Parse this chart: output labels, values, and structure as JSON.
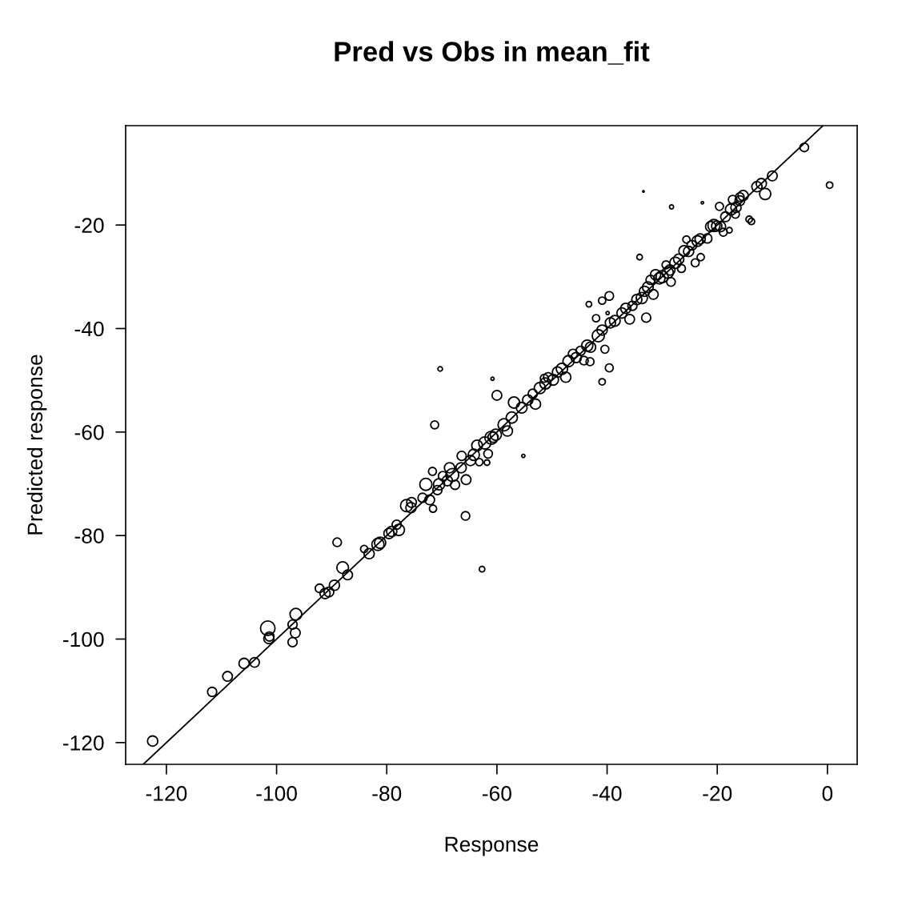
{
  "chart_data": {
    "type": "bubble",
    "title": "Pred vs Obs in mean_fit",
    "xlabel": "Response",
    "ylabel": "Predicted response",
    "xlim": [
      -127.4,
      5.4
    ],
    "ylim": [
      -124.2,
      -0.8
    ],
    "xticks": [
      -120,
      -100,
      -80,
      -60,
      -40,
      -20,
      0
    ],
    "yticks": [
      -120,
      -100,
      -80,
      -60,
      -40,
      -20
    ],
    "grid": false,
    "legend": false,
    "marker": "circle",
    "series": [
      {
        "color": "#000000",
        "x": [
          -122.5,
          -111.7,
          -108.9,
          -105.9,
          -104,
          -101.6,
          -101.4,
          -101.3,
          -97.1,
          -97.1,
          -96.6,
          -96.5,
          -92.2,
          -91.2,
          -90.5,
          -89.5,
          -89,
          -88,
          -87.1,
          -84.1,
          -83.2,
          -81.6,
          -81.2,
          -79.6,
          -79.1,
          -77.8,
          -78.2,
          -76.4,
          -75.6,
          -75.5,
          -73.5,
          -72.9,
          -72.2,
          -71.6,
          -71.7,
          -71.3,
          -70.5,
          -70.8,
          -70.3,
          -69.8,
          -69.0,
          -68.6,
          -68.1,
          -67.6,
          -66.5,
          -66.4,
          -65.7,
          -65.6,
          -64.8,
          -64.2,
          -63.6,
          -63.2,
          -62.7,
          -62.2,
          -61.8,
          -61.6,
          -61.0,
          -60.7,
          -60.2,
          -60.8,
          -60.0,
          -58.7,
          -58.1,
          -57.3,
          -56.9,
          -55.5,
          -55.2,
          -54.4,
          -53.5,
          -53.0,
          -52.2,
          -51.4,
          -51.2,
          -50.7,
          -49.8,
          -49.0,
          -48.2,
          -47.5,
          -47.0,
          -46.2,
          -45.6,
          -44.8,
          -44.2,
          -43.6,
          -43.0,
          -43.1,
          -43.3,
          -42.0,
          -41.6,
          -40.9,
          -40.4,
          -39.6,
          -40.9,
          -39.4,
          -38.6,
          -39.9,
          -40.9,
          -39.6,
          -37.3,
          -36.6,
          -35.9,
          -35.4,
          -34.6,
          -34.1,
          -33.7,
          -33.2,
          -32.9,
          -32.6,
          -32.1,
          -31.6,
          -31.2,
          -30.5,
          -30.0,
          -29.3,
          -29.0,
          -28.6,
          -28.3,
          -28.4,
          -27.6,
          -27.0,
          -26.5,
          -26.0,
          -25.6,
          -25.2,
          -24.6,
          -24.0,
          -23.6,
          -23.1,
          -23.0,
          -22.7,
          -21.8,
          -21.2,
          -20.6,
          -20.1,
          -19.4,
          -19.6,
          -18.9,
          -18.5,
          -17.8,
          -17.5,
          -17.2,
          -16.6,
          -15.9,
          -15.3,
          -14.2,
          -13.8,
          -12.8,
          -12.0,
          -11.3,
          -10.0,
          -4.2,
          0.4,
          -33.4,
          -16.7,
          -15.9
        ],
        "values": [
          -119.7,
          -110.2,
          -107.2,
          -104.7,
          -104.5,
          -97.9,
          -99.9,
          -99.5,
          -100.6,
          -97.2,
          -98.8,
          -95.2,
          -90.2,
          -91.2,
          -90.9,
          -89.6,
          -81.3,
          -86.2,
          -87.6,
          -82.6,
          -83.5,
          -81.7,
          -81.4,
          -79.6,
          -79.2,
          -78.9,
          -77.9,
          -74.2,
          -74.6,
          -73.6,
          -72.7,
          -70.1,
          -73.1,
          -74.8,
          -67.6,
          -58.6,
          -70.1,
          -71.2,
          -47.8,
          -68.5,
          -69.4,
          -66.9,
          -68.3,
          -70.2,
          -66.9,
          -64.6,
          -76.2,
          -69.2,
          -65.5,
          -64.4,
          -62.6,
          -65.8,
          -86.5,
          -62.1,
          -65.9,
          -64.2,
          -61.1,
          -61.0,
          -60.5,
          -49.7,
          -52.9,
          -58.6,
          -59.8,
          -57.2,
          -54.3,
          -55.3,
          -64.6,
          -53.8,
          -52.6,
          -54.6,
          -51.5,
          -49.6,
          -50.6,
          -49.4,
          -49.9,
          -48.4,
          -47.8,
          -49.4,
          -46.3,
          -44.9,
          -45.6,
          -44.3,
          -46.2,
          -43.3,
          -43.6,
          -46.4,
          -35.3,
          -38.0,
          -41.4,
          -40.3,
          -44.0,
          -47.6,
          -50.3,
          -38.9,
          -38.5,
          -37.0,
          -34.6,
          -33.7,
          -37.0,
          -36.1,
          -38.2,
          -35.6,
          -34.4,
          -26.2,
          -34.1,
          -32.8,
          -37.9,
          -32.0,
          -30.6,
          -33.4,
          -29.6,
          -30.3,
          -30.0,
          -27.7,
          -29.2,
          -28.7,
          -16.5,
          -31.0,
          -27.3,
          -26.6,
          -28.4,
          -25.0,
          -22.8,
          -25.1,
          -23.9,
          -27.3,
          -23.1,
          -22.7,
          -26.2,
          -15.7,
          -22.6,
          -20.3,
          -20.1,
          -20.2,
          -20.3,
          -16.4,
          -21.4,
          -18.4,
          -21.0,
          -17.0,
          -15.1,
          -16.6,
          -15.3,
          -14.3,
          -18.9,
          -19.3,
          -12.6,
          -12.0,
          -14.0,
          -10.5,
          -5.0,
          -12.3,
          -13.5,
          -17.9,
          -14.6
        ],
        "sizes": [
          0.5,
          0.4,
          0.45,
          0.5,
          0.45,
          1.0,
          0.5,
          0.4,
          0.4,
          0.4,
          0.45,
          0.65,
          0.35,
          0.5,
          0.45,
          0.5,
          0.35,
          0.65,
          0.45,
          0.25,
          0.5,
          0.7,
          0.6,
          0.5,
          0.5,
          0.6,
          0.4,
          0.7,
          0.5,
          0.45,
          0.4,
          0.7,
          0.45,
          0.25,
          0.3,
          0.3,
          0.6,
          0.4,
          0.1,
          0.4,
          0.5,
          0.5,
          0.8,
          0.4,
          0.5,
          0.4,
          0.35,
          0.45,
          0.5,
          0.6,
          0.55,
          0.25,
          0.15,
          0.7,
          0.15,
          0.35,
          0.8,
          0.5,
          0.6,
          0.05,
          0.45,
          0.7,
          0.5,
          0.6,
          0.6,
          0.55,
          0.05,
          0.5,
          0.4,
          0.5,
          0.6,
          0.3,
          0.6,
          0.4,
          0.55,
          0.5,
          0.6,
          0.5,
          0.6,
          0.4,
          0.5,
          0.4,
          0.35,
          0.6,
          0.5,
          0.3,
          0.15,
          0.25,
          0.7,
          0.5,
          0.3,
          0.3,
          0.2,
          0.5,
          0.55,
          0.05,
          0.25,
          0.35,
          0.5,
          0.5,
          0.45,
          0.4,
          0.5,
          0.15,
          0.6,
          0.5,
          0.4,
          0.55,
          0.4,
          0.45,
          0.5,
          0.6,
          0.7,
          0.3,
          0.6,
          0.5,
          0.08,
          0.35,
          0.6,
          0.5,
          0.3,
          0.55,
          0.25,
          0.5,
          0.45,
          0.3,
          0.55,
          0.5,
          0.25,
          0.03,
          0.4,
          0.5,
          0.7,
          0.5,
          0.5,
          0.3,
          0.3,
          0.45,
          0.15,
          0.6,
          0.35,
          0.5,
          0.45,
          0.5,
          0.2,
          0.2,
          0.5,
          0.5,
          0.6,
          0.45,
          0.35,
          0.2,
          0.01,
          0.3,
          0.35
        ]
      },
      {
        "type": "line",
        "color": "#000000",
        "line_style": "solid",
        "marker": "none",
        "x": [
          -124.2,
          -0.8
        ],
        "values": [
          -124.2,
          -0.8
        ]
      }
    ]
  }
}
